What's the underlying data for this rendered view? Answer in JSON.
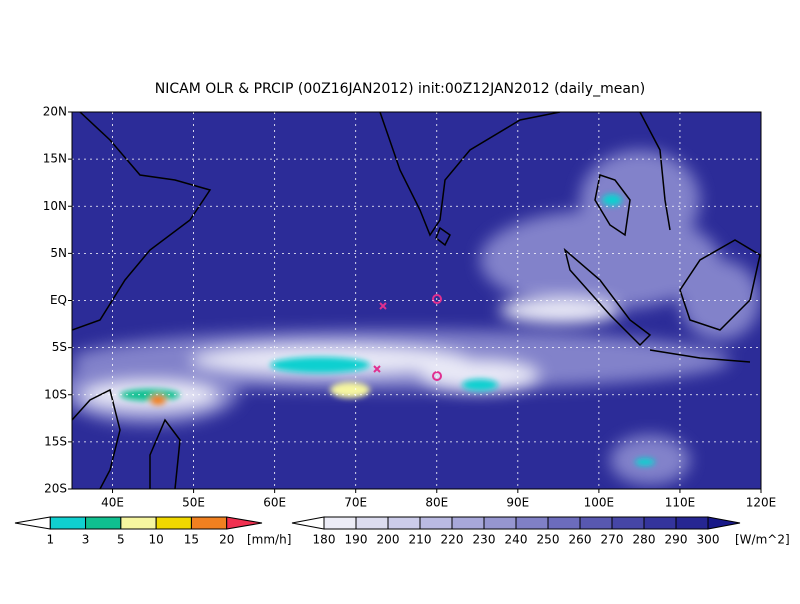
{
  "title": "NICAM OLR & PRCIP (00Z16JAN2012) init:00Z12JAN2012 (daily_mean)",
  "map": {
    "lon_range": [
      35,
      120
    ],
    "lat_range": [
      -20,
      20
    ],
    "lat_ticks": [
      {
        "value": 20,
        "label": "20N"
      },
      {
        "value": 15,
        "label": "15N"
      },
      {
        "value": 10,
        "label": "10N"
      },
      {
        "value": 5,
        "label": "5N"
      },
      {
        "value": 0,
        "label": "EQ"
      },
      {
        "value": -5,
        "label": "5S"
      },
      {
        "value": -10,
        "label": "10S"
      },
      {
        "value": -15,
        "label": "15S"
      },
      {
        "value": -20,
        "label": "20S"
      }
    ],
    "lon_ticks": [
      {
        "value": 40,
        "label": "40E"
      },
      {
        "value": 50,
        "label": "50E"
      },
      {
        "value": 60,
        "label": "60E"
      },
      {
        "value": 70,
        "label": "70E"
      },
      {
        "value": 80,
        "label": "80E"
      },
      {
        "value": 90,
        "label": "90E"
      },
      {
        "value": 100,
        "label": "100E"
      },
      {
        "value": 110,
        "label": "110E"
      },
      {
        "value": 120,
        "label": "120E"
      }
    ]
  },
  "precip_legend": {
    "labels": [
      1,
      3,
      5,
      10,
      15,
      20
    ],
    "colors": [
      "#ffffff",
      "#10d0d0",
      "#10c090",
      "#f6f6a0",
      "#f0d800",
      "#f08020",
      "#f03050"
    ],
    "unit": "[mm/h]"
  },
  "olr_legend": {
    "labels": [
      180,
      190,
      200,
      210,
      220,
      230,
      240,
      250,
      260,
      270,
      280,
      290,
      300
    ],
    "colors": [
      "#ffffff",
      "#ececf6",
      "#dcdcef",
      "#ccccea",
      "#babae2",
      "#a8a8da",
      "#9696d0",
      "#8080c6",
      "#6c6cbc",
      "#5858b0",
      "#4646a6",
      "#34349c",
      "#262692",
      "#181888"
    ],
    "unit": "[W/m^2]"
  }
}
